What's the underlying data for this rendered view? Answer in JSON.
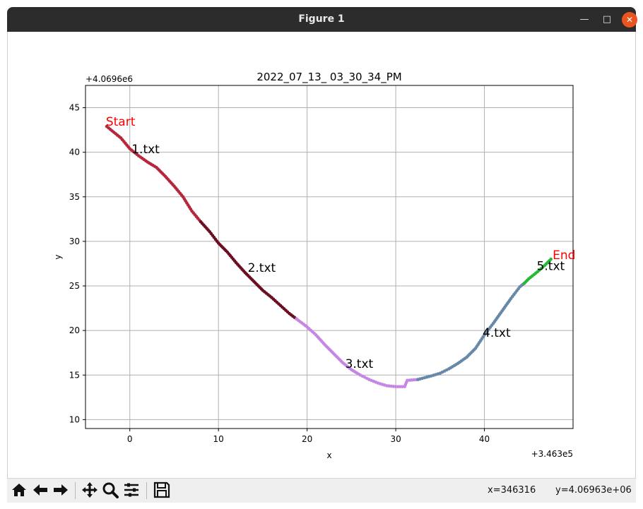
{
  "window": {
    "title": "Figure 1",
    "min_icon": "minimize-icon",
    "max_icon": "maximize-icon",
    "close_icon": "close-icon"
  },
  "toolbar": {
    "buttons": [
      "home-icon",
      "back-arrow-icon",
      "forward-arrow-icon",
      "pan-icon",
      "zoom-icon",
      "configure-subplots-icon",
      "save-icon"
    ],
    "x_readout": "x=346316",
    "y_readout": "y=4.06963e+06"
  },
  "chart_data": {
    "type": "scatter",
    "title": "2022_07_13_ 03_30_34_PM",
    "xlabel": "x",
    "ylabel": "y",
    "x_offset_label": "+3.463e5",
    "y_offset_label": "+4.0696e6",
    "xlim": [
      -5,
      50
    ],
    "ylim": [
      9,
      47.5
    ],
    "xticks": [
      0,
      10,
      20,
      30,
      40
    ],
    "yticks": [
      10,
      15,
      20,
      25,
      30,
      35,
      40,
      45
    ],
    "grid": true,
    "series": [
      {
        "color": "#b5283c",
        "points": [
          [
            -2.6,
            42.9
          ],
          [
            -2,
            42.4
          ],
          [
            -1,
            41.6
          ],
          [
            0,
            40.4
          ],
          [
            1,
            39.6
          ],
          [
            2,
            38.9
          ],
          [
            3,
            38.3
          ],
          [
            4,
            37.3
          ],
          [
            5,
            36.2
          ],
          [
            6,
            35
          ],
          [
            7,
            33.4
          ],
          [
            8,
            32.2
          ]
        ]
      },
      {
        "color": "#6a0f22",
        "points": [
          [
            8,
            32.2
          ],
          [
            9,
            31.1
          ],
          [
            10,
            29.8
          ],
          [
            11,
            28.8
          ],
          [
            12,
            27.6
          ],
          [
            13,
            26.5
          ],
          [
            14,
            25.5
          ],
          [
            15,
            24.5
          ],
          [
            16,
            23.7
          ],
          [
            17,
            22.8
          ],
          [
            18,
            21.9
          ],
          [
            18.8,
            21.3
          ]
        ]
      },
      {
        "color": "#c686e4",
        "points": [
          [
            18.8,
            21.3
          ],
          [
            20,
            20.4
          ],
          [
            21,
            19.5
          ],
          [
            22,
            18.4
          ],
          [
            23,
            17.4
          ],
          [
            24,
            16.4
          ],
          [
            25,
            15.6
          ],
          [
            26,
            15
          ],
          [
            27,
            14.5
          ],
          [
            28,
            14.1
          ],
          [
            29,
            13.8
          ],
          [
            30,
            13.7
          ],
          [
            31,
            13.7
          ],
          [
            31.3,
            14.4
          ],
          [
            32.5,
            14.5
          ]
        ]
      },
      {
        "color": "#6788a6",
        "points": [
          [
            32.5,
            14.5
          ],
          [
            34,
            14.9
          ],
          [
            35,
            15.2
          ],
          [
            36,
            15.7
          ],
          [
            37,
            16.3
          ],
          [
            38,
            17
          ],
          [
            39,
            18
          ],
          [
            40,
            19.5
          ],
          [
            41,
            20.8
          ],
          [
            42,
            22.2
          ],
          [
            43,
            23.6
          ],
          [
            44,
            24.9
          ],
          [
            44.5,
            25.3
          ]
        ]
      },
      {
        "color": "#22bb33",
        "points": [
          [
            44.5,
            25.3
          ],
          [
            45,
            25.8
          ],
          [
            46,
            26.6
          ],
          [
            46.8,
            27.3
          ],
          [
            47.5,
            28
          ]
        ]
      }
    ],
    "annotations": [
      {
        "text": "Start",
        "x": -2.7,
        "y": 43,
        "color": "#ff0000"
      },
      {
        "text": "1.txt",
        "x": 0.2,
        "y": 39.9,
        "color": "#000000"
      },
      {
        "text": "2.txt",
        "x": 13.3,
        "y": 26.6,
        "color": "#000000"
      },
      {
        "text": "3.txt",
        "x": 24.3,
        "y": 15.8,
        "color": "#000000"
      },
      {
        "text": "4.txt",
        "x": 39.8,
        "y": 19.3,
        "color": "#000000"
      },
      {
        "text": "5.txt",
        "x": 45.9,
        "y": 26.8,
        "color": "#000000"
      },
      {
        "text": "End",
        "x": 47.7,
        "y": 28,
        "color": "#ff0000"
      }
    ]
  }
}
